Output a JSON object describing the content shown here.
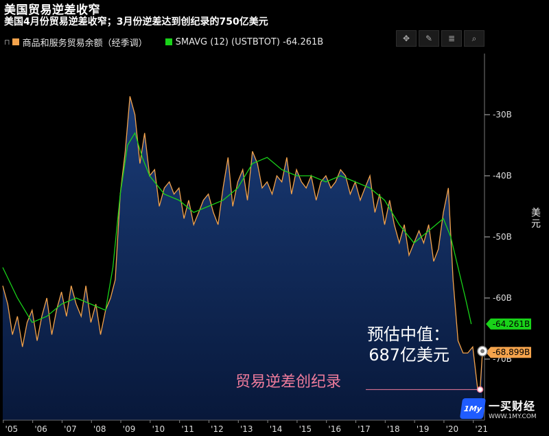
{
  "header": {
    "title": "美国贸易逆差收窄",
    "subtitle": "美国4月份贸易逆差收窄；3月份逆差达到创纪录的750亿美元"
  },
  "legend": {
    "series1_label": "商品和服务贸易余额（经季调）",
    "series2_label": "SMAVG (12) (USTBTOT)  -64.261B"
  },
  "toolbar": [
    "crosshair-icon",
    "pencil-icon",
    "menu-icon",
    "search-icon"
  ],
  "colors": {
    "trade": "#f4a34c",
    "smavg": "#19d219",
    "fill_top": "#133267",
    "fill_bottom": "#071633",
    "record": "#f07c9c"
  },
  "annotations": {
    "estimate_line1": "预估中值：",
    "estimate_line2": "687亿美元",
    "record": "贸易逆差创纪录"
  },
  "brand": {
    "name": "一买财经",
    "url": "WWW.1MY.COM",
    "logo": "1My"
  },
  "chart_data": {
    "type": "line",
    "title": "美国贸易逆差收窄",
    "ylabel": "美元",
    "ylim": [
      -80,
      -20
    ],
    "yticks": [
      -30,
      -40,
      -50,
      -60,
      -70
    ],
    "ytick_labels": [
      "-30B",
      "-40B",
      "-50B",
      "-60B",
      "-70B"
    ],
    "xlim": [
      2005.0,
      2021.4
    ],
    "xticks": [
      2005.3,
      2006.3,
      2007.3,
      2008.3,
      2009.3,
      2010.3,
      2011.3,
      2012.3,
      2013.3,
      2014.3,
      2015.3,
      2016.3,
      2017.3,
      2018.3,
      2019.3,
      2020.3,
      2021.3
    ],
    "xtick_labels": [
      "'05",
      "'06",
      "'07",
      "'08",
      "'09",
      "'10",
      "'11",
      "'12",
      "'13",
      "'14",
      "'15",
      "'16",
      "'17",
      "'18",
      "'19",
      "'20",
      "'21"
    ],
    "grid": false,
    "series": [
      {
        "name": "商品和服务贸易余额（经季调）",
        "color": "#f4a34c",
        "x": [
          2005.0,
          2005.17,
          2005.33,
          2005.5,
          2005.67,
          2005.83,
          2006.0,
          2006.17,
          2006.33,
          2006.5,
          2006.67,
          2006.83,
          2007.0,
          2007.17,
          2007.33,
          2007.5,
          2007.67,
          2007.83,
          2008.0,
          2008.17,
          2008.33,
          2008.5,
          2008.67,
          2008.83,
          2009.0,
          2009.17,
          2009.33,
          2009.5,
          2009.67,
          2009.83,
          2010.0,
          2010.17,
          2010.33,
          2010.5,
          2010.67,
          2010.83,
          2011.0,
          2011.17,
          2011.33,
          2011.5,
          2011.67,
          2011.83,
          2012.0,
          2012.17,
          2012.33,
          2012.5,
          2012.67,
          2012.83,
          2013.0,
          2013.17,
          2013.33,
          2013.5,
          2013.67,
          2013.83,
          2014.0,
          2014.17,
          2014.33,
          2014.5,
          2014.67,
          2014.83,
          2015.0,
          2015.17,
          2015.33,
          2015.5,
          2015.67,
          2015.83,
          2016.0,
          2016.17,
          2016.33,
          2016.5,
          2016.67,
          2016.83,
          2017.0,
          2017.17,
          2017.33,
          2017.5,
          2017.67,
          2017.83,
          2018.0,
          2018.17,
          2018.33,
          2018.5,
          2018.67,
          2018.83,
          2019.0,
          2019.17,
          2019.33,
          2019.5,
          2019.67,
          2019.83,
          2020.0,
          2020.17,
          2020.33,
          2020.5,
          2020.67,
          2020.83,
          2021.0,
          2021.17,
          2021.25,
          2021.33
        ],
        "values": [
          -58,
          -61,
          -66,
          -63,
          -68,
          -64,
          -62,
          -67,
          -63,
          -60,
          -66,
          -62,
          -59,
          -63,
          -58,
          -61,
          -63,
          -58,
          -64,
          -61,
          -66,
          -62,
          -60,
          -57,
          -43,
          -36,
          -27,
          -30,
          -38,
          -33,
          -40,
          -39,
          -45,
          -42,
          -41,
          -43,
          -42,
          -47,
          -44,
          -48,
          -46,
          -44,
          -43,
          -46,
          -48,
          -42,
          -37,
          -45,
          -41,
          -39,
          -44,
          -36,
          -38,
          -42,
          -41,
          -43,
          -40,
          -41,
          -37,
          -43,
          -39,
          -41,
          -42,
          -40,
          -44,
          -41,
          -40,
          -42,
          -41,
          -39,
          -40,
          -43,
          -41,
          -44,
          -42,
          -40,
          -46,
          -43,
          -48,
          -44,
          -48,
          -51,
          -48,
          -53,
          -51,
          -49,
          -51,
          -48,
          -54,
          -52,
          -46,
          -42,
          -57,
          -67,
          -69,
          -69,
          -68,
          -75,
          -74.98,
          -68.9
        ]
      },
      {
        "name": "SMAVG (12) (USTBTOT)",
        "color": "#19d219",
        "x": [
          2005.0,
          2005.5,
          2006.0,
          2006.5,
          2007.0,
          2007.5,
          2008.0,
          2008.5,
          2008.75,
          2009.0,
          2009.25,
          2009.5,
          2009.75,
          2010.0,
          2010.5,
          2011.0,
          2011.5,
          2012.0,
          2012.5,
          2013.0,
          2013.5,
          2014.0,
          2014.5,
          2015.0,
          2015.5,
          2016.0,
          2016.5,
          2017.0,
          2017.5,
          2018.0,
          2018.5,
          2019.0,
          2019.5,
          2019.75,
          2020.0,
          2020.25,
          2020.5,
          2020.75,
          2020.95
        ],
        "values": [
          -55,
          -60,
          -64,
          -63,
          -61,
          -60,
          -61,
          -62,
          -55,
          -43,
          -35,
          -33,
          -37,
          -40,
          -43,
          -44,
          -46,
          -45,
          -44,
          -42,
          -38,
          -37,
          -39,
          -40,
          -40,
          -41,
          -40,
          -41,
          -42,
          -44,
          -48,
          -51,
          -49,
          -48,
          -47,
          -50,
          -55,
          -60,
          -64.261
        ]
      }
    ],
    "end_labels": [
      {
        "series": "SMAVG (12) (USTBTOT)",
        "value": -64.261,
        "label": "-64.261B"
      },
      {
        "series": "商品和服务贸易余额（经季调）",
        "value": -68.899,
        "label": "-68.899B"
      }
    ],
    "markers": [
      {
        "label": "预估中值：687亿美元",
        "x": 2021.33,
        "value": -68.7
      },
      {
        "label": "贸易逆差创纪录",
        "x": 2021.25,
        "value": -74.98
      }
    ]
  }
}
